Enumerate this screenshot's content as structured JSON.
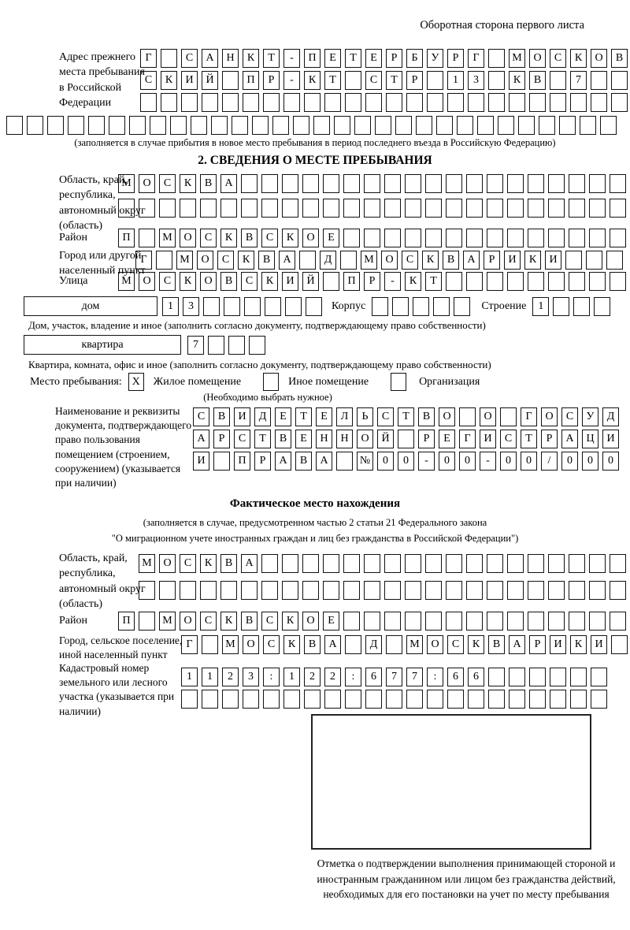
{
  "header": {
    "back_note": "Оборотная сторона первого листа"
  },
  "prev_address": {
    "label": "Адрес прежнего места пребывания в Российской Федерации",
    "rows": [
      "Г САНКТ-ПЕТЕРБУРГ МОСКОВ",
      "СКИЙ ПР-КТ СТР 13 КВ 7  ",
      "                        ",
      "                              "
    ],
    "note": "(заполняется в случае прибытия в новое место пребывания в период последнего въезда в Российскую Федерацию)"
  },
  "section2": {
    "title": "2. СВЕДЕНИЯ О МЕСТЕ ПРЕБЫВАНИЯ",
    "region": {
      "label": "Область, край, республика, автономный округ (область)",
      "rows": [
        "МОСКВА                   ",
        "                         "
      ]
    },
    "district": {
      "label": "Район",
      "row": "П МОСКВСКОЕ              "
    },
    "city": {
      "label": "Город или другой населенный пункт",
      "row": "Г МОСКВА Д МОСКВАРИКИ   "
    },
    "street": {
      "label": "Улица",
      "row": "МОСКОВСКИЙ ПР-КТ         "
    },
    "house": {
      "label": "дом",
      "cells": "13      ",
      "korpus_label": "Корпус",
      "korpus_cells": "     ",
      "stroenie_label": "Строение",
      "stroenie_cells": "1   "
    },
    "house_note": "Дом, участок, владение и иное (заполнить согласно документу, подтверждающему право собственности)",
    "apartment": {
      "label": "квартира",
      "cells": "7   "
    },
    "apartment_note": "Квартира, комната, офис и иное (заполнить согласно документу, подтверждающему право собственности)",
    "stay": {
      "label": "Место пребывания:",
      "options": [
        {
          "mark": "X",
          "label": "Жилое помещение"
        },
        {
          "mark": " ",
          "label": "Иное помещение"
        },
        {
          "mark": " ",
          "label": "Организация"
        }
      ],
      "note": "(Необходимо выбрать нужное)"
    },
    "doc": {
      "label": "Наименование и реквизиты документа, подтверждающего право пользования помещением (строением, сооружением) (указывается при наличии)",
      "rows": [
        "СВИДЕТЕЛЬСТВО О ГОСУД",
        "АРСТВЕННОЙ РЕГИСТРАЦИ",
        "И ПРАВА №00-00-00/000"
      ]
    }
  },
  "actual": {
    "title": "Фактическое место нахождения",
    "note1": "(заполняется в случае, предусмотренном частью 2 статьи 21 Федерального закона",
    "note2": "\"О миграционном учете иностранных граждан и лиц без гражданства в Российской Федерации\")",
    "region": {
      "label": "Область, край, республика, автономный округ (область)",
      "rows": [
        "МОСКВА                  ",
        "                        "
      ]
    },
    "district": {
      "label": "Район",
      "row": "П МОСКВСКОЕ              "
    },
    "city": {
      "label": "Город, сельское поселение, иной населенный пункт",
      "row": "Г МОСКВА Д МОСКВАРИКИ "
    },
    "cadastral": {
      "label": "Кадастровый номер земельного или лесного участка (указывается при наличии)",
      "rows": [
        "1123:122:677:66      ",
        "                     "
      ]
    },
    "stamp_note": "Отметка о подтверждении выполнения принимающей стороной и иностранным гражданином или лицом без гражданства действий, необходимых для его постановки на учет по месту пребывания"
  }
}
